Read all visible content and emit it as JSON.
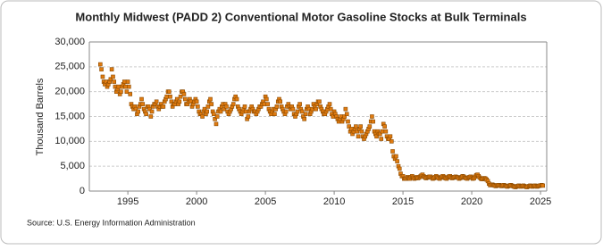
{
  "chart_data": {
    "type": "scatter",
    "title": "Monthly Midwest (PADD 2) Conventional Motor Gasoline Stocks at Bulk Terminals",
    "y_label": "Thousand Barrels",
    "source": "Source: U.S. Energy Information Administration",
    "xlim": [
      1992.2,
      2025.45
    ],
    "xticks": [
      1995,
      2000,
      2005,
      2010,
      2015,
      2020,
      2025
    ],
    "ylim": [
      0,
      30000
    ],
    "yticks": [
      0,
      {
        "value": 5000,
        "label": "5,000"
      },
      {
        "value": 10000,
        "label": "10,000"
      },
      {
        "value": 15000,
        "label": "15,000"
      },
      {
        "value": 20000,
        "label": "20,000"
      },
      {
        "value": 25000,
        "label": "25,000"
      },
      {
        "value": 30000,
        "label": "30,000"
      }
    ],
    "grid": true,
    "x": [
      1993,
      1993.08,
      1993.17,
      1993.25,
      1993.33,
      1993.42,
      1993.5,
      1993.58,
      1993.67,
      1993.75,
      1993.83,
      1993.92,
      1994,
      1994.08,
      1994.17,
      1994.25,
      1994.33,
      1994.42,
      1994.5,
      1994.58,
      1994.67,
      1994.75,
      1994.83,
      1994.92,
      1995,
      1995.08,
      1995.17,
      1995.25,
      1995.33,
      1995.42,
      1995.5,
      1995.58,
      1995.67,
      1995.75,
      1995.83,
      1995.92,
      1996,
      1996.08,
      1996.17,
      1996.25,
      1996.33,
      1996.42,
      1996.5,
      1996.58,
      1996.67,
      1996.75,
      1996.83,
      1996.92,
      1997,
      1997.08,
      1997.17,
      1997.25,
      1997.33,
      1997.42,
      1997.5,
      1997.58,
      1997.67,
      1997.75,
      1997.83,
      1997.92,
      1998,
      1998.08,
      1998.17,
      1998.25,
      1998.33,
      1998.42,
      1998.5,
      1998.58,
      1998.67,
      1998.75,
      1998.83,
      1998.92,
      1999,
      1999.08,
      1999.17,
      1999.25,
      1999.33,
      1999.42,
      1999.5,
      1999.58,
      1999.67,
      1999.75,
      1999.83,
      1999.92,
      2000,
      2000.08,
      2000.17,
      2000.25,
      2000.33,
      2000.42,
      2000.5,
      2000.58,
      2000.67,
      2000.75,
      2000.83,
      2000.92,
      2001,
      2001.08,
      2001.17,
      2001.25,
      2001.33,
      2001.42,
      2001.5,
      2001.58,
      2001.67,
      2001.75,
      2001.83,
      2001.92,
      2002,
      2002.08,
      2002.17,
      2002.25,
      2002.33,
      2002.42,
      2002.5,
      2002.58,
      2002.67,
      2002.75,
      2002.83,
      2002.92,
      2003,
      2003.08,
      2003.17,
      2003.25,
      2003.33,
      2003.42,
      2003.5,
      2003.58,
      2003.67,
      2003.75,
      2003.83,
      2003.92,
      2004,
      2004.08,
      2004.17,
      2004.25,
      2004.33,
      2004.42,
      2004.5,
      2004.58,
      2004.67,
      2004.75,
      2004.83,
      2004.92,
      2005,
      2005.08,
      2005.17,
      2005.25,
      2005.33,
      2005.42,
      2005.5,
      2005.58,
      2005.67,
      2005.75,
      2005.83,
      2005.92,
      2006,
      2006.08,
      2006.17,
      2006.25,
      2006.33,
      2006.42,
      2006.5,
      2006.58,
      2006.67,
      2006.75,
      2006.83,
      2006.92,
      2007,
      2007.08,
      2007.17,
      2007.25,
      2007.33,
      2007.42,
      2007.5,
      2007.58,
      2007.67,
      2007.75,
      2007.83,
      2007.92,
      2008,
      2008.08,
      2008.17,
      2008.25,
      2008.33,
      2008.42,
      2008.5,
      2008.58,
      2008.67,
      2008.75,
      2008.83,
      2008.92,
      2009,
      2009.08,
      2009.17,
      2009.25,
      2009.33,
      2009.42,
      2009.5,
      2009.58,
      2009.67,
      2009.75,
      2009.83,
      2009.92,
      2010,
      2010.08,
      2010.17,
      2010.25,
      2010.33,
      2010.42,
      2010.5,
      2010.58,
      2010.67,
      2010.75,
      2010.83,
      2010.92,
      2011,
      2011.08,
      2011.17,
      2011.25,
      2011.33,
      2011.42,
      2011.5,
      2011.58,
      2011.67,
      2011.75,
      2011.83,
      2011.92,
      2012,
      2012.08,
      2012.17,
      2012.25,
      2012.33,
      2012.42,
      2012.5,
      2012.58,
      2012.67,
      2012.75,
      2012.83,
      2012.92,
      2013,
      2013.08,
      2013.17,
      2013.25,
      2013.33,
      2013.42,
      2013.5,
      2013.58,
      2013.67,
      2013.75,
      2013.83,
      2013.92,
      2014,
      2014.08,
      2014.17,
      2014.25,
      2014.33,
      2014.42,
      2014.5,
      2014.58,
      2014.67,
      2014.75,
      2014.83,
      2014.92,
      2015,
      2015.08,
      2015.17,
      2015.25,
      2015.33,
      2015.42,
      2015.5,
      2015.58,
      2015.67,
      2015.75,
      2015.83,
      2015.92,
      2016,
      2016.08,
      2016.17,
      2016.25,
      2016.33,
      2016.42,
      2016.5,
      2016.58,
      2016.67,
      2016.75,
      2016.83,
      2016.92,
      2017,
      2017.08,
      2017.17,
      2017.25,
      2017.33,
      2017.42,
      2017.5,
      2017.58,
      2017.67,
      2017.75,
      2017.83,
      2017.92,
      2018,
      2018.08,
      2018.17,
      2018.25,
      2018.33,
      2018.42,
      2018.5,
      2018.58,
      2018.67,
      2018.75,
      2018.83,
      2018.92,
      2019,
      2019.08,
      2019.17,
      2019.25,
      2019.33,
      2019.42,
      2019.5,
      2019.58,
      2019.67,
      2019.75,
      2019.83,
      2019.92,
      2020,
      2020.08,
      2020.17,
      2020.25,
      2020.33,
      2020.42,
      2020.5,
      2020.58,
      2020.67,
      2020.75,
      2020.83,
      2020.92,
      2021,
      2021.08,
      2021.17,
      2021.25,
      2021.33,
      2021.42,
      2021.5,
      2021.58,
      2021.67,
      2021.75,
      2021.83,
      2021.92,
      2022,
      2022.08,
      2022.17,
      2022.25,
      2022.33,
      2022.42,
      2022.5,
      2022.58,
      2022.67,
      2022.75,
      2022.83,
      2022.92,
      2023,
      2023.08,
      2023.17,
      2023.25,
      2023.33,
      2023.42,
      2023.5,
      2023.58,
      2023.67,
      2023.75,
      2023.83,
      2023.92,
      2024,
      2024.08,
      2024.17,
      2024.25,
      2024.33,
      2024.42,
      2024.5,
      2024.58,
      2024.67,
      2024.75,
      2024.83,
      2024.92,
      2025,
      2025.08,
      2025.17
    ],
    "series": [
      {
        "color": "#e07b10",
        "values": [
          25500,
          24500,
          23000,
          22000,
          21500,
          22000,
          21000,
          21500,
          22000,
          22500,
          24500,
          23000,
          22000,
          21000,
          20000,
          20500,
          21000,
          19500,
          20000,
          21000,
          21500,
          22000,
          21000,
          20000,
          22000,
          21000,
          19500,
          17500,
          17000,
          16500,
          17000,
          16500,
          15500,
          16000,
          17000,
          17500,
          18500,
          17500,
          16500,
          16000,
          15500,
          17000,
          17000,
          16500,
          15000,
          16000,
          17000,
          17500,
          17500,
          18000,
          17000,
          16500,
          17000,
          17500,
          17000,
          17000,
          18000,
          18500,
          19000,
          20000,
          20000,
          19000,
          18000,
          17000,
          17500,
          17500,
          18000,
          18500,
          17500,
          18000,
          19000,
          20000,
          20000,
          19500,
          18500,
          17500,
          17500,
          18000,
          18500,
          18000,
          17000,
          17500,
          18000,
          18500,
          18000,
          17000,
          16000,
          15500,
          15500,
          15000,
          16000,
          16500,
          15500,
          16000,
          17000,
          18000,
          18500,
          17500,
          16000,
          15500,
          14500,
          13500,
          15000,
          16000,
          16500,
          16000,
          17000,
          17500,
          16500,
          17500,
          17000,
          16000,
          15500,
          16000,
          16500,
          17000,
          17500,
          18500,
          19000,
          18500,
          17000,
          16500,
          16000,
          15500,
          16000,
          16500,
          17000,
          16000,
          14500,
          15000,
          16000,
          16500,
          17000,
          16500,
          16000,
          16000,
          15500,
          16000,
          16500,
          17000,
          17000,
          17500,
          18000,
          17500,
          19000,
          18500,
          17500,
          16500,
          16000,
          15500,
          16000,
          16500,
          15500,
          16500,
          17000,
          18000,
          18500,
          18000,
          17000,
          16500,
          16000,
          15500,
          16000,
          17000,
          17500,
          17000,
          16500,
          17000,
          16500,
          15500,
          15000,
          15500,
          16000,
          17000,
          17500,
          16500,
          16000,
          15000,
          14500,
          15500,
          16500,
          17000,
          16500,
          15500,
          16000,
          16500,
          17500,
          17000,
          16500,
          17500,
          18000,
          18000,
          17000,
          16500,
          16000,
          15500,
          15500,
          16000,
          16500,
          17000,
          17500,
          16500,
          15500,
          15000,
          16000,
          15500,
          15000,
          14500,
          14000,
          14500,
          15000,
          14000,
          14500,
          15000,
          16500,
          15500,
          14000,
          13000,
          12000,
          12500,
          11500,
          12000,
          12500,
          13000,
          12000,
          11000,
          12500,
          13000,
          12000,
          11000,
          10500,
          11000,
          11500,
          12000,
          12500,
          13000,
          14000,
          15000,
          14000,
          12000,
          11500,
          11000,
          12000,
          11500,
          11500,
          10500,
          12000,
          13500,
          13000,
          12000,
          11000,
          10500,
          10500,
          11000,
          10000,
          8000,
          7000,
          6500,
          7000,
          6000,
          5000,
          4500,
          3500,
          3000,
          3000,
          2500,
          2500,
          2500,
          2800,
          2600,
          2500,
          2800,
          3000,
          2700,
          2500,
          2600,
          2800,
          2600,
          2700,
          2900,
          3100,
          3300,
          3000,
          2800,
          2600,
          2700,
          2800,
          2900,
          2900,
          2700,
          2500,
          2600,
          2800,
          3000,
          2800,
          2600,
          2500,
          2700,
          2900,
          3000,
          2800,
          2600,
          2500,
          2700,
          2900,
          3000,
          2800,
          2600,
          2700,
          2800,
          2900,
          2800,
          2700,
          2500,
          2600,
          2800,
          3000,
          2900,
          2700,
          2600,
          2500,
          2700,
          2800,
          2900,
          2700,
          2500,
          2600,
          2900,
          3200,
          3300,
          3000,
          2700,
          2500,
          2400,
          2500,
          2600,
          2500,
          2300,
          2000,
          1500,
          1200,
          1200,
          1300,
          1200,
          1100,
          1000,
          1100,
          1200,
          1200,
          1100,
          1000,
          1100,
          1200,
          1100,
          1000,
          900,
          1000,
          1100,
          1200,
          1100,
          1000,
          900,
          800,
          900,
          1000,
          1100,
          1000,
          900,
          1000,
          1100,
          1000,
          900,
          800,
          900,
          1000,
          1100,
          1000,
          900,
          1000,
          1100,
          1000,
          900,
          1000,
          1100,
          1100,
          1200,
          1100
        ]
      }
    ]
  }
}
